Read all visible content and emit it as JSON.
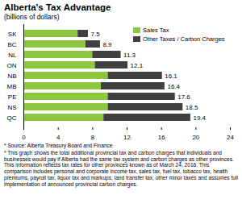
{
  "chart_data": {
    "type": "bar",
    "orientation": "horizontal",
    "stacked": true,
    "title": "Alberta's Tax Advantage",
    "subtitle": "(billions of dollars)",
    "categories": [
      "SK",
      "BC",
      "NL",
      "ON",
      "NB",
      "MB",
      "PE",
      "NS",
      "QC"
    ],
    "series": [
      {
        "name": "Sales Tax",
        "color": "#8dc63f",
        "values": [
          6.3,
          7.2,
          8.0,
          8.3,
          9.8,
          9.0,
          9.8,
          9.8,
          9.3
        ]
      },
      {
        "name": "Other Taxes / Carbon Charges",
        "color": "#404040",
        "values": [
          1.2,
          1.7,
          3.3,
          3.8,
          6.3,
          7.4,
          7.8,
          8.7,
          10.1
        ]
      }
    ],
    "totals": [
      7.5,
      8.9,
      11.3,
      12.1,
      16.1,
      16.4,
      17.6,
      18.5,
      19.4
    ],
    "xlim": [
      0,
      24
    ],
    "xticks": [
      0,
      4,
      8,
      12,
      16,
      20,
      24
    ],
    "grid": false,
    "legend": "top-right",
    "notes": [
      "* Source: Alberta Treasury Board and Finance",
      "* This graph shows the total additional provincial tax and carbon charges that individuals and businesses would pay if Alberta had the same tax system and carbon charges as other provinces. This information reflects tax rates for other provinces known as of March 24, 2016. This comparison includes personal and corporate income tax, sales tax, fuel tax, tobacco tax, health premiums, payroll tax, liquor tax and markups, land transfer tax, other minor taxes and assumes full implementation of announced provincial carbon charges."
    ]
  }
}
